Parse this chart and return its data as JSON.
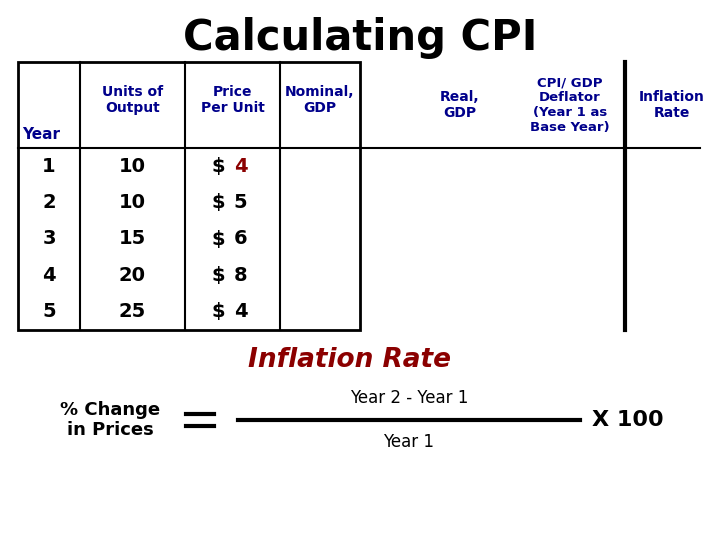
{
  "title": "Calculating CPI",
  "title_fontsize": 30,
  "title_color": "#000000",
  "table_year_label": "Year",
  "table_years": [
    "1",
    "2",
    "3",
    "4",
    "5"
  ],
  "table_output": [
    "10",
    "10",
    "15",
    "20",
    "25"
  ],
  "table_price_values": [
    "4",
    "5",
    "6",
    "8",
    "4"
  ],
  "table_price_color_first": "#8B0000",
  "table_price_color_rest": "#000000",
  "table_header_color": "#00008B",
  "table_data_color": "#000000",
  "col_header_units": "Units of\nOutput",
  "col_header_price": "Price\nPer Unit",
  "col_header_nominal": "Nominal,\nGDP",
  "col_header_real": "Real,\nGDP",
  "col_header_cpi": "CPI/ GDP\nDeflator\n(Year 1 as\nBase Year)",
  "col_header_inflation": "Inflation\nRate",
  "inflation_rate_label": "Inflation Rate",
  "inflation_rate_color": "#8B0000",
  "inflation_rate_fontsize": 19,
  "formula_left": "% Change\nin Prices",
  "formula_equals": "=",
  "formula_numerator": "Year 2 - Year 1",
  "formula_denominator": "Year 1",
  "formula_multiplier": "X 100",
  "formula_color": "#000000",
  "background_color": "#FFFFFF"
}
